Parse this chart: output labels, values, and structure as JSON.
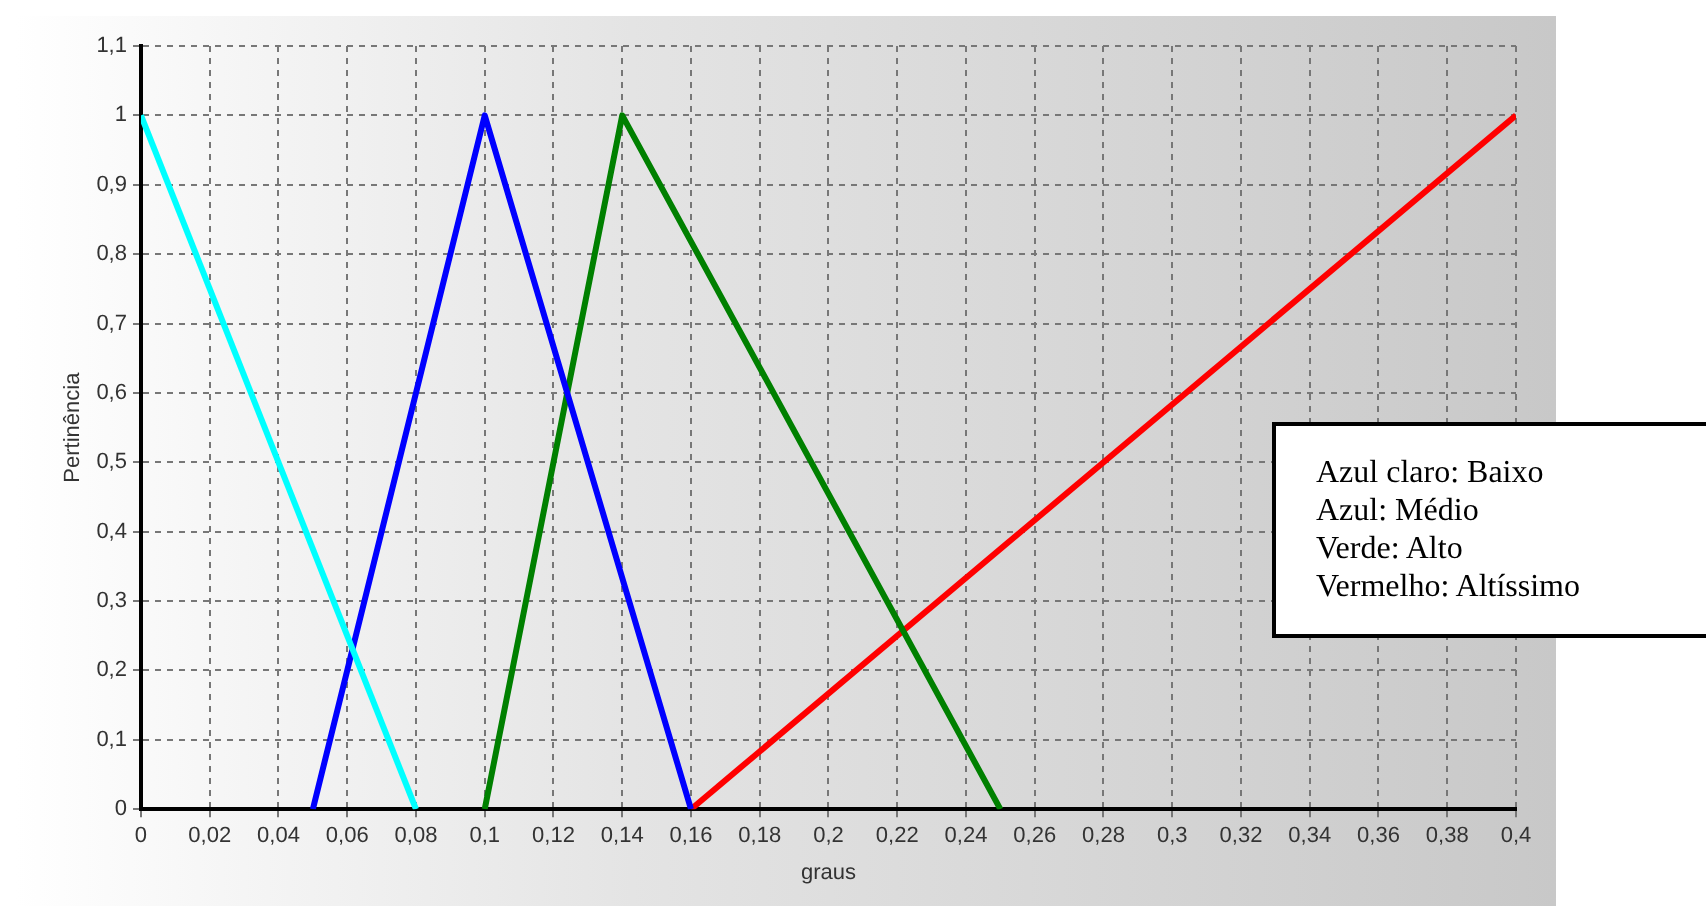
{
  "chart_data": {
    "type": "line",
    "xlabel": "graus",
    "ylabel": "Pertinência",
    "series": [
      {
        "color": "#00ffff",
        "x": [
          0,
          0.08
        ],
        "values": [
          1,
          0
        ]
      },
      {
        "color": "#0000ff",
        "x": [
          0.05,
          0.1,
          0.16
        ],
        "values": [
          0,
          1,
          0
        ]
      },
      {
        "color": "#008000",
        "x": [
          0.1,
          0.14,
          0.25
        ],
        "values": [
          0,
          1,
          0
        ]
      },
      {
        "color": "#ff0000",
        "x": [
          0.16,
          0.4
        ],
        "values": [
          0,
          1
        ]
      }
    ],
    "xlim": [
      0,
      0.4
    ],
    "xticks": [
      0,
      {
        "value": 0.02,
        "label": "0,02"
      },
      {
        "value": 0.04,
        "label": "0,04"
      },
      {
        "value": 0.06,
        "label": "0,06"
      },
      {
        "value": 0.08,
        "label": "0,08"
      },
      {
        "value": 0.1,
        "label": "0,1"
      },
      {
        "value": 0.12,
        "label": "0,12"
      },
      {
        "value": 0.14,
        "label": "0,14"
      },
      {
        "value": 0.16,
        "label": "0,16"
      },
      {
        "value": 0.18,
        "label": "0,18"
      },
      {
        "value": 0.2,
        "label": "0,2"
      },
      {
        "value": 0.22,
        "label": "0,22"
      },
      {
        "value": 0.24,
        "label": "0,24"
      },
      {
        "value": 0.26,
        "label": "0,26"
      },
      {
        "value": 0.28,
        "label": "0,28"
      },
      {
        "value": 0.3,
        "label": "0,3"
      },
      {
        "value": 0.32,
        "label": "0,32"
      },
      {
        "value": 0.34,
        "label": "0,34"
      },
      {
        "value": 0.36,
        "label": "0,36"
      },
      {
        "value": 0.38,
        "label": "0,38"
      },
      {
        "value": 0.4,
        "label": "0,4"
      }
    ],
    "ylim": [
      0,
      1.1
    ],
    "yticks": [
      0,
      {
        "value": 0.1,
        "label": "0,1"
      },
      {
        "value": 0.2,
        "label": "0,2"
      },
      {
        "value": 0.3,
        "label": "0,3"
      },
      {
        "value": 0.4,
        "label": "0,4"
      },
      {
        "value": 0.5,
        "label": "0,5"
      },
      {
        "value": 0.6,
        "label": "0,6"
      },
      {
        "value": 0.7,
        "label": "0,7"
      },
      {
        "value": 0.8,
        "label": "0,8"
      },
      {
        "value": 0.9,
        "label": "0,9"
      },
      1,
      {
        "value": 1.1,
        "label": "1,1"
      }
    ],
    "grid": true,
    "marker": "none",
    "line_style": "solid",
    "annotations": [
      "Azul claro: Baixo",
      "Azul: Médio",
      "Verde: Alto",
      "Vermelho: Altíssimo"
    ]
  }
}
